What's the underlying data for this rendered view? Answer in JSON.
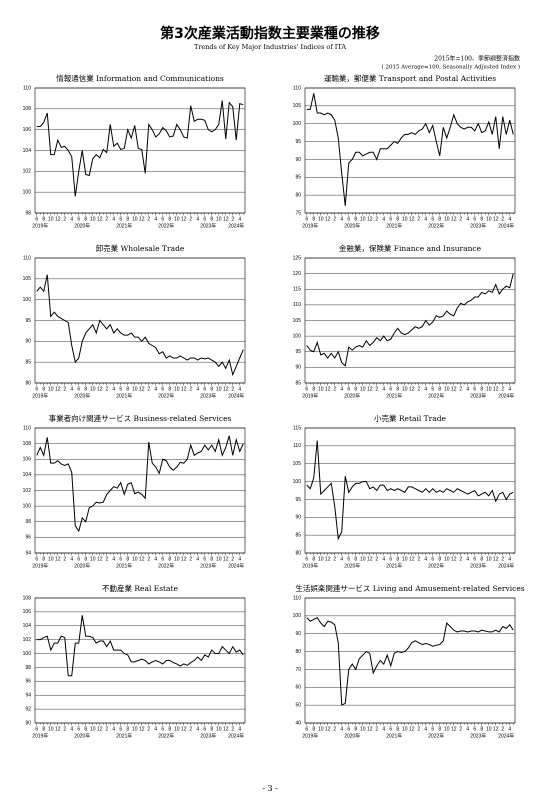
{
  "header": {
    "title": "第3次産業活動指数主要業種の推移",
    "subtitle": "Trends of Key Major Industries' Indices of ITA",
    "note_ja": "2015年=100、季節調整済指数",
    "note_en": "( 2015 Average=100, Seasonally Adjusted Index )"
  },
  "chart_data": [
    {
      "type": "line",
      "title": "情報通信業 Information and Communications",
      "color": "#000000",
      "categories": [
        "6",
        null,
        "8",
        null,
        "10",
        null,
        "12",
        null,
        "2",
        null,
        "4",
        null,
        "6",
        null,
        "8",
        null,
        "10",
        null,
        "12",
        null,
        "2",
        null,
        "4",
        null,
        "6",
        null,
        "8",
        null,
        "10",
        null,
        "12",
        null,
        "2",
        null,
        "4",
        null,
        "6",
        null,
        "8",
        null,
        "10",
        null,
        "12",
        null,
        "2",
        null,
        "4",
        null,
        "6",
        null,
        "8",
        null,
        "10",
        null,
        "12",
        null,
        "2",
        null,
        "4",
        null
      ],
      "year_labels": [
        "2019年",
        "2020年",
        "2021年",
        "2022年",
        "2023年",
        "2024年"
      ],
      "values": [
        106.3,
        106.3,
        106.7,
        107.6,
        103.6,
        103.6,
        105.0,
        104.3,
        104.4,
        104.0,
        103.4,
        99.6,
        102.0,
        104.0,
        101.7,
        101.6,
        103.2,
        103.6,
        103.3,
        104.1,
        103.8,
        106.5,
        104.4,
        104.7,
        104.1,
        104.2,
        106.0,
        105.2,
        106.4,
        104.2,
        104.1,
        101.8,
        106.5,
        106.0,
        105.3,
        105.6,
        106.2,
        105.9,
        105.3,
        105.4,
        106.5,
        106.0,
        105.3,
        105.2,
        108.3,
        106.8,
        107.0,
        107.0,
        106.9,
        106.0,
        105.8,
        106.0,
        106.5,
        108.8,
        105.1,
        108.6,
        108.2,
        105.0,
        108.5,
        108.4
      ],
      "ylim": [
        98,
        110
      ],
      "yticks": [
        98,
        100,
        102,
        104,
        106,
        108,
        110
      ],
      "grid": true
    },
    {
      "type": "line",
      "title": "運輸業，郵便業 Transport and Postal Activities",
      "color": "#000000",
      "categories": [
        "6",
        null,
        "8",
        null,
        "10",
        null,
        "12",
        null,
        "2",
        null,
        "4",
        null,
        "6",
        null,
        "8",
        null,
        "10",
        null,
        "12",
        null,
        "2",
        null,
        "4",
        null,
        "6",
        null,
        "8",
        null,
        "10",
        null,
        "12",
        null,
        "2",
        null,
        "4",
        null,
        "6",
        null,
        "8",
        null,
        "10",
        null,
        "12",
        null,
        "2",
        null,
        "4",
        null,
        "6",
        null,
        "8",
        null,
        "10",
        null,
        "12",
        null,
        "2",
        null,
        "4",
        null
      ],
      "year_labels": [
        "2019年",
        "2020年",
        "2021年",
        "2022年",
        "2023年",
        "2024年"
      ],
      "values": [
        104,
        104,
        108.5,
        103,
        103,
        102.5,
        103,
        102.5,
        101,
        96,
        86,
        77,
        89,
        90,
        92,
        92,
        91,
        91.5,
        92,
        92,
        90,
        93,
        93,
        93,
        94,
        95,
        94.5,
        96,
        97,
        97,
        97.5,
        97,
        98,
        98.5,
        100,
        97.5,
        99.5,
        95,
        91,
        99,
        96,
        99,
        102.5,
        100,
        99,
        98.5,
        99,
        99,
        98,
        100,
        97.5,
        98,
        100.5,
        97,
        102,
        93,
        102,
        97,
        101,
        97
      ],
      "ylim": [
        75,
        110
      ],
      "yticks": [
        75,
        80,
        85,
        90,
        95,
        100,
        105,
        110
      ],
      "grid": true
    },
    {
      "type": "line",
      "title": "卸売業 Wholesale Trade",
      "color": "#000000",
      "categories": [
        "6",
        null,
        "8",
        null,
        "10",
        null,
        "12",
        null,
        "2",
        null,
        "4",
        null,
        "6",
        null,
        "8",
        null,
        "10",
        null,
        "12",
        null,
        "2",
        null,
        "4",
        null,
        "6",
        null,
        "8",
        null,
        "10",
        null,
        "12",
        null,
        "2",
        null,
        "4",
        null,
        "6",
        null,
        "8",
        null,
        "10",
        null,
        "12",
        null,
        "2",
        null,
        "4",
        null,
        "6",
        null,
        "8",
        null,
        "10",
        null,
        "12",
        null,
        "2",
        null,
        "4",
        null
      ],
      "year_labels": [
        "2019年",
        "2020年",
        "2021年",
        "2022年",
        "2023年",
        "2024年"
      ],
      "values": [
        102,
        103,
        102,
        106,
        96,
        97,
        96,
        95.5,
        95,
        94.5,
        89,
        85,
        86,
        90,
        92,
        93,
        94,
        92,
        95,
        94,
        93,
        94,
        92,
        93,
        92,
        91.5,
        91.5,
        92,
        91,
        91,
        90,
        91,
        89.5,
        89,
        88.5,
        87,
        87.5,
        86,
        86.5,
        86,
        86,
        86.5,
        86,
        85.5,
        86,
        86,
        85.5,
        86,
        85.8,
        86,
        85.5,
        85,
        84,
        85,
        83.5,
        85.5,
        82,
        84,
        86,
        88
      ],
      "ylim": [
        80,
        110
      ],
      "yticks": [
        80,
        85,
        90,
        95,
        100,
        105,
        110
      ],
      "grid": true
    },
    {
      "type": "line",
      "title": "金融業，保険業 Finance and Insurance",
      "color": "#000000",
      "categories": [
        "6",
        null,
        "8",
        null,
        "10",
        null,
        "12",
        null,
        "2",
        null,
        "4",
        null,
        "6",
        null,
        "8",
        null,
        "10",
        null,
        "12",
        null,
        "2",
        null,
        "4",
        null,
        "6",
        null,
        "8",
        null,
        "10",
        null,
        "12",
        null,
        "2",
        null,
        "4",
        null,
        "6",
        null,
        "8",
        null,
        "10",
        null,
        "12",
        null,
        "2",
        null,
        "4",
        null,
        "6",
        null,
        "8",
        null,
        "10",
        null,
        "12",
        null,
        "2",
        null,
        "4",
        null
      ],
      "year_labels": [
        "2019年",
        "2020年",
        "2021年",
        "2022年",
        "2023年",
        "2024年"
      ],
      "values": [
        97,
        95.5,
        95,
        98,
        94,
        94.5,
        93,
        94.5,
        93,
        95,
        91.5,
        90.5,
        96.5,
        95.5,
        96.5,
        97,
        96.5,
        98.5,
        97,
        98,
        99.5,
        98.5,
        100,
        98.5,
        99,
        101,
        102.5,
        101,
        100.5,
        101,
        102,
        103,
        102.5,
        103,
        105,
        103.5,
        104.5,
        106.5,
        106,
        106.5,
        108,
        107,
        106.5,
        109,
        110.5,
        110,
        111,
        111.5,
        112.5,
        112.5,
        114,
        113.5,
        114.5,
        114,
        116.5,
        113.5,
        115,
        116,
        115.5,
        120
      ],
      "ylim": [
        85,
        125
      ],
      "yticks": [
        85,
        90,
        95,
        100,
        105,
        110,
        115,
        120,
        125
      ],
      "grid": true
    },
    {
      "type": "line",
      "title": "事業者向け関連サービス Business-related Services",
      "color": "#000000",
      "categories": [
        "6",
        null,
        "8",
        null,
        "10",
        null,
        "12",
        null,
        "2",
        null,
        "4",
        null,
        "6",
        null,
        "8",
        null,
        "10",
        null,
        "12",
        null,
        "2",
        null,
        "4",
        null,
        "6",
        null,
        "8",
        null,
        "10",
        null,
        "12",
        null,
        "2",
        null,
        "4",
        null,
        "6",
        null,
        "8",
        null,
        "10",
        null,
        "12",
        null,
        "2",
        null,
        "4",
        null,
        "6",
        null,
        "8",
        null,
        "10",
        null,
        "12",
        null,
        "2",
        null,
        "4",
        null
      ],
      "year_labels": [
        "2019年",
        "2020年",
        "2021年",
        "2022年",
        "2023年",
        "2024年"
      ],
      "values": [
        106.5,
        107.5,
        106.5,
        108.8,
        105.5,
        105.5,
        105.8,
        105.4,
        105.2,
        105.4,
        104.3,
        97.5,
        96.8,
        98.5,
        98,
        99.8,
        100,
        100.5,
        100.4,
        100.5,
        101.5,
        102,
        102.5,
        102.3,
        103,
        101.5,
        102.8,
        103,
        101.6,
        101.8,
        101.5,
        101,
        108.2,
        105.5,
        105,
        104.2,
        106,
        105.8,
        105,
        104.6,
        105,
        105.6,
        105.5,
        106,
        107.8,
        106.5,
        106.8,
        107,
        107.8,
        107.2,
        107.8,
        107,
        108.5,
        106.5,
        107.5,
        109,
        106.5,
        108.5,
        107,
        108
      ],
      "ylim": [
        94,
        110
      ],
      "yticks": [
        94,
        96,
        98,
        100,
        102,
        104,
        106,
        108,
        110
      ],
      "grid": true
    },
    {
      "type": "line",
      "title": "小売業 Retail Trade",
      "color": "#000000",
      "categories": [
        "6",
        null,
        "8",
        null,
        "10",
        null,
        "12",
        null,
        "2",
        null,
        "4",
        null,
        "6",
        null,
        "8",
        null,
        "10",
        null,
        "12",
        null,
        "2",
        null,
        "4",
        null,
        "6",
        null,
        "8",
        null,
        "10",
        null,
        "12",
        null,
        "2",
        null,
        "4",
        null,
        "6",
        null,
        "8",
        null,
        "10",
        null,
        "12",
        null,
        "2",
        null,
        "4",
        null,
        "6",
        null,
        "8",
        null,
        "10",
        null,
        "12",
        null,
        "2",
        null,
        "4",
        null
      ],
      "year_labels": [
        "2019年",
        "2020年",
        "2021年",
        "2022年",
        "2023年",
        "2024年"
      ],
      "values": [
        99,
        98,
        101,
        111.5,
        96.5,
        97.5,
        98.5,
        99.5,
        93,
        84,
        86,
        101.5,
        97,
        98.5,
        99.5,
        99.5,
        100,
        100,
        98,
        98.5,
        97.5,
        99,
        99,
        97.5,
        98,
        97.5,
        98,
        97.5,
        97,
        98.5,
        98.5,
        98,
        97.5,
        97,
        98,
        97,
        98,
        97,
        97.5,
        97,
        98,
        97.5,
        97,
        98,
        97.5,
        97,
        96.5,
        97,
        97.5,
        96,
        96.5,
        97,
        96,
        97.5,
        94.5,
        96.5,
        97,
        95,
        96.5,
        97
      ],
      "ylim": [
        80,
        115
      ],
      "yticks": [
        80,
        85,
        90,
        95,
        100,
        105,
        110,
        115
      ],
      "grid": true
    },
    {
      "type": "line",
      "title": "不動産業 Real Estate",
      "color": "#000000",
      "categories": [
        "6",
        null,
        "8",
        null,
        "10",
        null,
        "12",
        null,
        "2",
        null,
        "4",
        null,
        "6",
        null,
        "8",
        null,
        "10",
        null,
        "12",
        null,
        "2",
        null,
        "4",
        null,
        "6",
        null,
        "8",
        null,
        "10",
        null,
        "12",
        null,
        "2",
        null,
        "4",
        null,
        "6",
        null,
        "8",
        null,
        "10",
        null,
        "12",
        null,
        "2",
        null,
        "4",
        null,
        "6",
        null,
        "8",
        null,
        "10",
        null,
        "12",
        null,
        "2",
        null,
        "4",
        null
      ],
      "year_labels": [
        "2019年",
        "2020年",
        "2021年",
        "2022年",
        "2023年",
        "2024年"
      ],
      "values": [
        102,
        102,
        102.3,
        102.5,
        100.5,
        101.5,
        101.5,
        102.5,
        102.3,
        96.8,
        96.8,
        101.5,
        101.5,
        105.5,
        102.5,
        102.5,
        102.3,
        101.5,
        101.8,
        101.8,
        101,
        101.8,
        100.5,
        100.5,
        100.5,
        100,
        99.8,
        98.8,
        98.8,
        99,
        99.2,
        99,
        98.5,
        98.8,
        99,
        98.8,
        98.5,
        99,
        99,
        98.7,
        98.5,
        98.2,
        98.5,
        98.3,
        98.7,
        99,
        99.5,
        99,
        99.8,
        99.5,
        100.5,
        100,
        100,
        101,
        100.5,
        100,
        101,
        100.2,
        100.5,
        99.8
      ],
      "ylim": [
        90,
        108
      ],
      "yticks": [
        90,
        92,
        94,
        96,
        98,
        100,
        102,
        104,
        106,
        108
      ],
      "grid": true
    },
    {
      "type": "line",
      "title": "生活娯楽関連サービス Living and Amusement-related Services",
      "color": "#000000",
      "categories": [
        "6",
        null,
        "8",
        null,
        "10",
        null,
        "12",
        null,
        "2",
        null,
        "4",
        null,
        "6",
        null,
        "8",
        null,
        "10",
        null,
        "12",
        null,
        "2",
        null,
        "4",
        null,
        "6",
        null,
        "8",
        null,
        "10",
        null,
        "12",
        null,
        "2",
        null,
        "4",
        null,
        "6",
        null,
        "8",
        null,
        "10",
        null,
        "12",
        null,
        "2",
        null,
        "4",
        null,
        "6",
        null,
        "8",
        null,
        "10",
        null,
        "12",
        null,
        "2",
        null,
        "4",
        null
      ],
      "year_labels": [
        "2019年",
        "2020年",
        "2021年",
        "2022年",
        "2023年",
        "2024年"
      ],
      "values": [
        99,
        97,
        98,
        99,
        96,
        94,
        97,
        96.5,
        95,
        85,
        50,
        51,
        70,
        73,
        70,
        76,
        78,
        80,
        79,
        68,
        72,
        75,
        73,
        78,
        72,
        79,
        80,
        79.5,
        80,
        82,
        85,
        86,
        85,
        84,
        84.5,
        84,
        83,
        83.5,
        84,
        86,
        96,
        94,
        92,
        91,
        91.5,
        91.5,
        91,
        91.5,
        91.5,
        91,
        92,
        91.5,
        91,
        91,
        92,
        91,
        94,
        93,
        95,
        92
      ],
      "ylim": [
        40,
        110
      ],
      "yticks": [
        40,
        50,
        60,
        70,
        80,
        90,
        100,
        110
      ],
      "grid": true
    }
  ],
  "footer": "- 3 -"
}
